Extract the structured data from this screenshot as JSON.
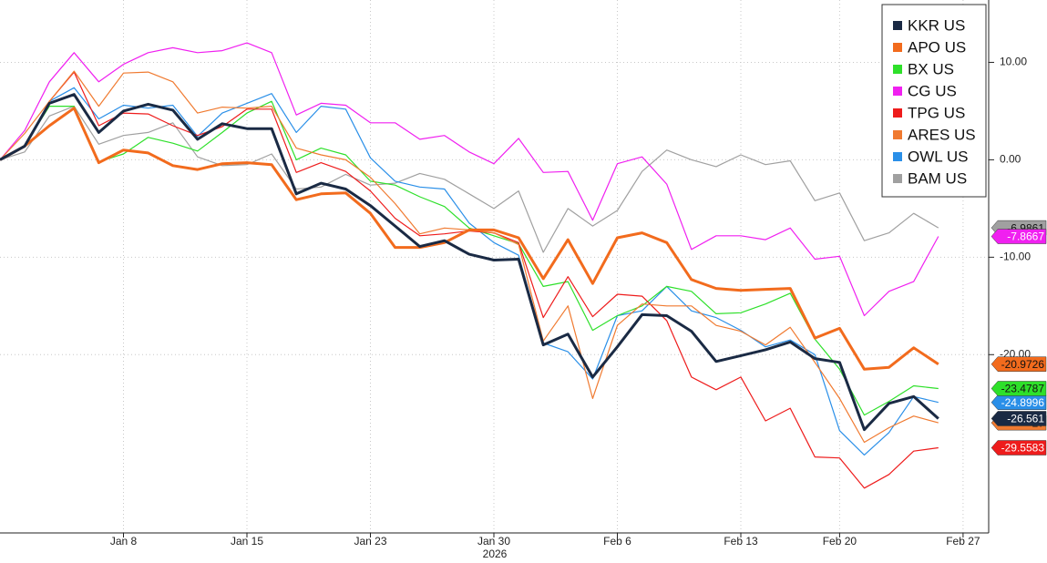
{
  "chart_data": {
    "type": "line",
    "categories": [
      null,
      null,
      null,
      null,
      null,
      "Jan 8",
      null,
      null,
      null,
      null,
      "Jan 15",
      null,
      null,
      null,
      null,
      "Jan 23",
      null,
      null,
      null,
      null,
      "Jan 30",
      null,
      null,
      null,
      null,
      "Feb 6",
      null,
      null,
      null,
      null,
      "Feb 13",
      null,
      null,
      null,
      "Feb 20",
      null,
      null,
      null,
      null,
      "Feb 27"
    ],
    "x_sublabel": "2026",
    "series": [
      {
        "name": "KKR US",
        "color": "#1a2a44",
        "values": [
          0,
          1.4,
          5.8,
          6.7,
          2.8,
          5.0,
          5.7,
          5.1,
          2.1,
          3.7,
          3.2,
          3.2,
          -3.5,
          -2.4,
          -3.0,
          -4.7,
          -6.8,
          -8.9,
          -8.3,
          -9.7,
          -10.3,
          -10.2,
          -19.0,
          -17.9,
          -22.3,
          -19.2,
          -15.9,
          -16.0,
          -17.6,
          -20.7,
          -20.1,
          -19.5,
          -18.7,
          -20.4,
          -20.8,
          -27.7,
          -25.0,
          -24.3,
          -26.561,
          null
        ]
      },
      {
        "name": "APO US",
        "color": "#f26b1d",
        "values": [
          0,
          1.4,
          3.5,
          5.3,
          -0.3,
          1.0,
          0.7,
          -0.6,
          -1.0,
          -0.4,
          -0.3,
          -0.5,
          -4.1,
          -3.5,
          -3.4,
          -5.5,
          -9.0,
          -9.0,
          -8.5,
          -7.2,
          -7.2,
          -8.0,
          -12.2,
          -8.2,
          -12.7,
          -8.0,
          -7.5,
          -8.5,
          -12.3,
          -13.2,
          -13.4,
          -13.3,
          -13.2,
          -18.3,
          -17.3,
          -21.5,
          -21.3,
          -19.3,
          -20.9726,
          null
        ]
      },
      {
        "name": "BX US",
        "color": "#2ee02a",
        "values": [
          0,
          1.5,
          5.5,
          5.5,
          -0.2,
          0.6,
          2.3,
          1.7,
          0.9,
          2.8,
          4.8,
          6.0,
          0.0,
          1.2,
          0.5,
          -2.2,
          -2.6,
          -3.8,
          -4.8,
          -7.0,
          -7.8,
          -8.6,
          -13.0,
          -12.5,
          -17.5,
          -16.0,
          -15.0,
          -13.0,
          -13.5,
          -15.8,
          -15.7,
          -14.8,
          -13.7,
          -18.4,
          -21.5,
          -26.2,
          -24.8,
          -23.2,
          -23.4787,
          null
        ]
      },
      {
        "name": "CG US",
        "color": "#f020f0",
        "values": [
          0,
          3.0,
          8.0,
          11.0,
          8.0,
          9.8,
          11.0,
          11.5,
          11.0,
          11.2,
          12.0,
          11.0,
          4.6,
          5.8,
          5.6,
          3.8,
          3.8,
          2.1,
          2.5,
          0.8,
          -0.4,
          2.2,
          -1.3,
          -1.2,
          -6.2,
          -0.4,
          0.3,
          -2.5,
          -9.2,
          -7.8,
          -7.8,
          -8.2,
          -7.0,
          -10.2,
          -9.9,
          -16.0,
          -13.5,
          -12.5,
          -7.8667,
          null
        ]
      },
      {
        "name": "TPG US",
        "color": "#ee1c1c",
        "values": [
          0,
          1.3,
          6.0,
          9.0,
          3.5,
          4.8,
          4.7,
          3.5,
          2.5,
          3.4,
          5.2,
          5.2,
          -1.3,
          -0.3,
          -1.2,
          -3.2,
          -6.0,
          -7.8,
          -7.6,
          -7.3,
          -7.5,
          -8.5,
          -16.2,
          -12.0,
          -16.1,
          -13.8,
          -14.0,
          -16.5,
          -22.3,
          -23.6,
          -22.3,
          -26.8,
          -25.5,
          -30.5,
          -30.6,
          -33.7,
          -32.3,
          -29.9,
          -29.5583,
          null
        ]
      },
      {
        "name": "ARES US",
        "color": "#f07a30",
        "values": [
          0,
          2.7,
          6.0,
          9.1,
          5.5,
          8.9,
          9.0,
          8.0,
          4.8,
          5.4,
          5.3,
          5.5,
          1.2,
          0.5,
          0.0,
          -1.8,
          -4.5,
          -7.6,
          -7.0,
          -7.2,
          -7.5,
          -8.7,
          -18.6,
          -15.0,
          -24.5,
          -17.0,
          -14.8,
          -15.0,
          -15.0,
          -17.0,
          -17.6,
          -19.0,
          -17.2,
          -20.8,
          -24.5,
          -29.0,
          -27.5,
          -26.3,
          -27.0,
          null
        ]
      },
      {
        "name": "OWL US",
        "color": "#2a8fe8",
        "values": [
          0,
          1.4,
          6.0,
          7.4,
          4.2,
          5.6,
          5.3,
          5.6,
          2.4,
          4.8,
          5.8,
          6.8,
          2.8,
          5.5,
          5.2,
          0.2,
          -2.2,
          -2.8,
          -3.0,
          -6.5,
          -8.5,
          -9.8,
          -18.8,
          -19.7,
          -22.5,
          -16.0,
          -15.5,
          -13.0,
          -15.5,
          -16.2,
          -17.5,
          -19.2,
          -18.5,
          -20.0,
          -27.8,
          -30.3,
          -28.0,
          -24.3,
          -24.8996,
          null
        ]
      },
      {
        "name": "BAM US",
        "color": "#a0a0a0",
        "values": [
          0,
          0.8,
          4.5,
          5.5,
          1.6,
          2.5,
          2.8,
          3.8,
          0.3,
          -0.6,
          -0.5,
          0.6,
          -3.0,
          -2.8,
          -1.5,
          -2.6,
          -2.4,
          -1.4,
          -2.0,
          -3.5,
          -5.0,
          -3.2,
          -9.5,
          -5.0,
          -6.8,
          -5.2,
          -1.2,
          1.0,
          0.0,
          -0.7,
          0.5,
          -0.5,
          -0.1,
          -4.2,
          -3.4,
          -8.3,
          -7.5,
          -5.5,
          -6.9861,
          null
        ]
      }
    ],
    "ylim": [
      -38.3,
      16.4
    ],
    "yticks": [
      {
        "value": 10,
        "label": "10.00"
      },
      {
        "value": 0,
        "label": "0.00"
      },
      {
        "value": -10,
        "label": "-10.00"
      },
      {
        "value": -20,
        "label": "-20.00"
      }
    ],
    "grid": true,
    "legend": "top-right"
  }
}
